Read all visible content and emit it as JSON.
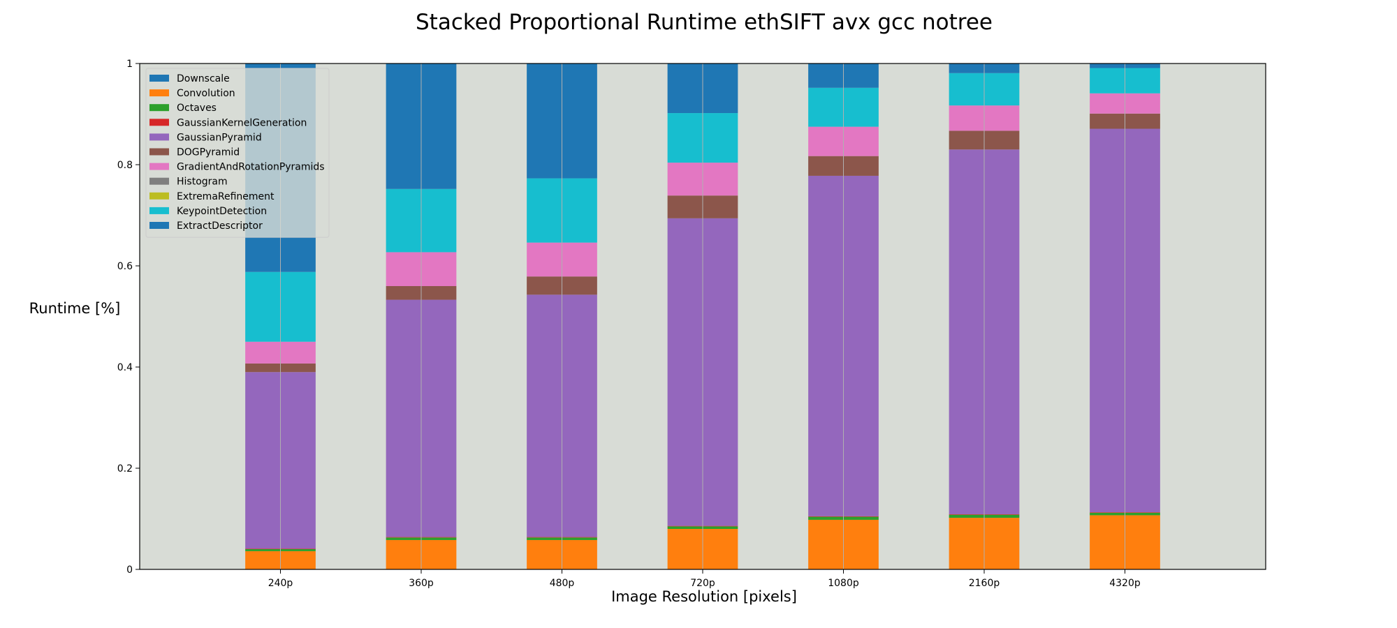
{
  "chart_data": {
    "type": "bar",
    "stacked": true,
    "title": "Stacked Proportional Runtime ethSIFT avx gcc notree",
    "xlabel": "Image Resolution [pixels]",
    "ylabel": "Runtime [%]",
    "ylim": [
      0,
      1
    ],
    "yticks": [
      0,
      0.2,
      0.4,
      0.6,
      0.8,
      1
    ],
    "ytick_labels": [
      "0",
      "0.2",
      "0.4",
      "0.6",
      "0.8",
      "1"
    ],
    "categories": [
      "240p",
      "360p",
      "480p",
      "720p",
      "1080p",
      "2160p",
      "4320p"
    ],
    "grid": "vertical",
    "legend_position": "top-left",
    "background_color": "#d8dcd6",
    "series": [
      {
        "name": "Downscale",
        "color": "#1f77b4",
        "values": [
          0,
          0,
          0,
          0,
          0,
          0,
          0
        ]
      },
      {
        "name": "Convolution",
        "color": "#ff7f0e",
        "values": [
          0.036,
          0.058,
          0.058,
          0.08,
          0.098,
          0.102,
          0.107
        ]
      },
      {
        "name": "Octaves",
        "color": "#2ca02c",
        "values": [
          0.004,
          0.005,
          0.005,
          0.005,
          0.006,
          0.006,
          0.005
        ]
      },
      {
        "name": "GaussianKernelGeneration",
        "color": "#d62728",
        "values": [
          0.001,
          0.001,
          0.001,
          0.001,
          0.001,
          0.001,
          0.001
        ]
      },
      {
        "name": "GaussianPyramid",
        "color": "#9467bd",
        "values": [
          0.349,
          0.469,
          0.479,
          0.608,
          0.673,
          0.721,
          0.758
        ]
      },
      {
        "name": "DOGPyramid",
        "color": "#8c564b",
        "values": [
          0.017,
          0.027,
          0.036,
          0.045,
          0.039,
          0.037,
          0.03
        ]
      },
      {
        "name": "GradientAndRotationPyramids",
        "color": "#e377c2",
        "values": [
          0.043,
          0.067,
          0.067,
          0.065,
          0.058,
          0.05,
          0.04
        ]
      },
      {
        "name": "Histogram",
        "color": "#7f7f7f",
        "values": [
          0,
          0,
          0,
          0,
          0,
          0,
          0
        ]
      },
      {
        "name": "ExtremaRefinement",
        "color": "#bcbd22",
        "values": [
          0,
          0,
          0,
          0,
          0,
          0,
          0
        ]
      },
      {
        "name": "KeypointDetection",
        "color": "#17becf",
        "values": [
          0.138,
          0.125,
          0.127,
          0.098,
          0.077,
          0.064,
          0.05
        ]
      },
      {
        "name": "ExtractDescriptor",
        "color": "#1f77b4",
        "values": [
          0.412,
          0.248,
          0.227,
          0.098,
          0.048,
          0.019,
          0.009
        ]
      }
    ]
  }
}
